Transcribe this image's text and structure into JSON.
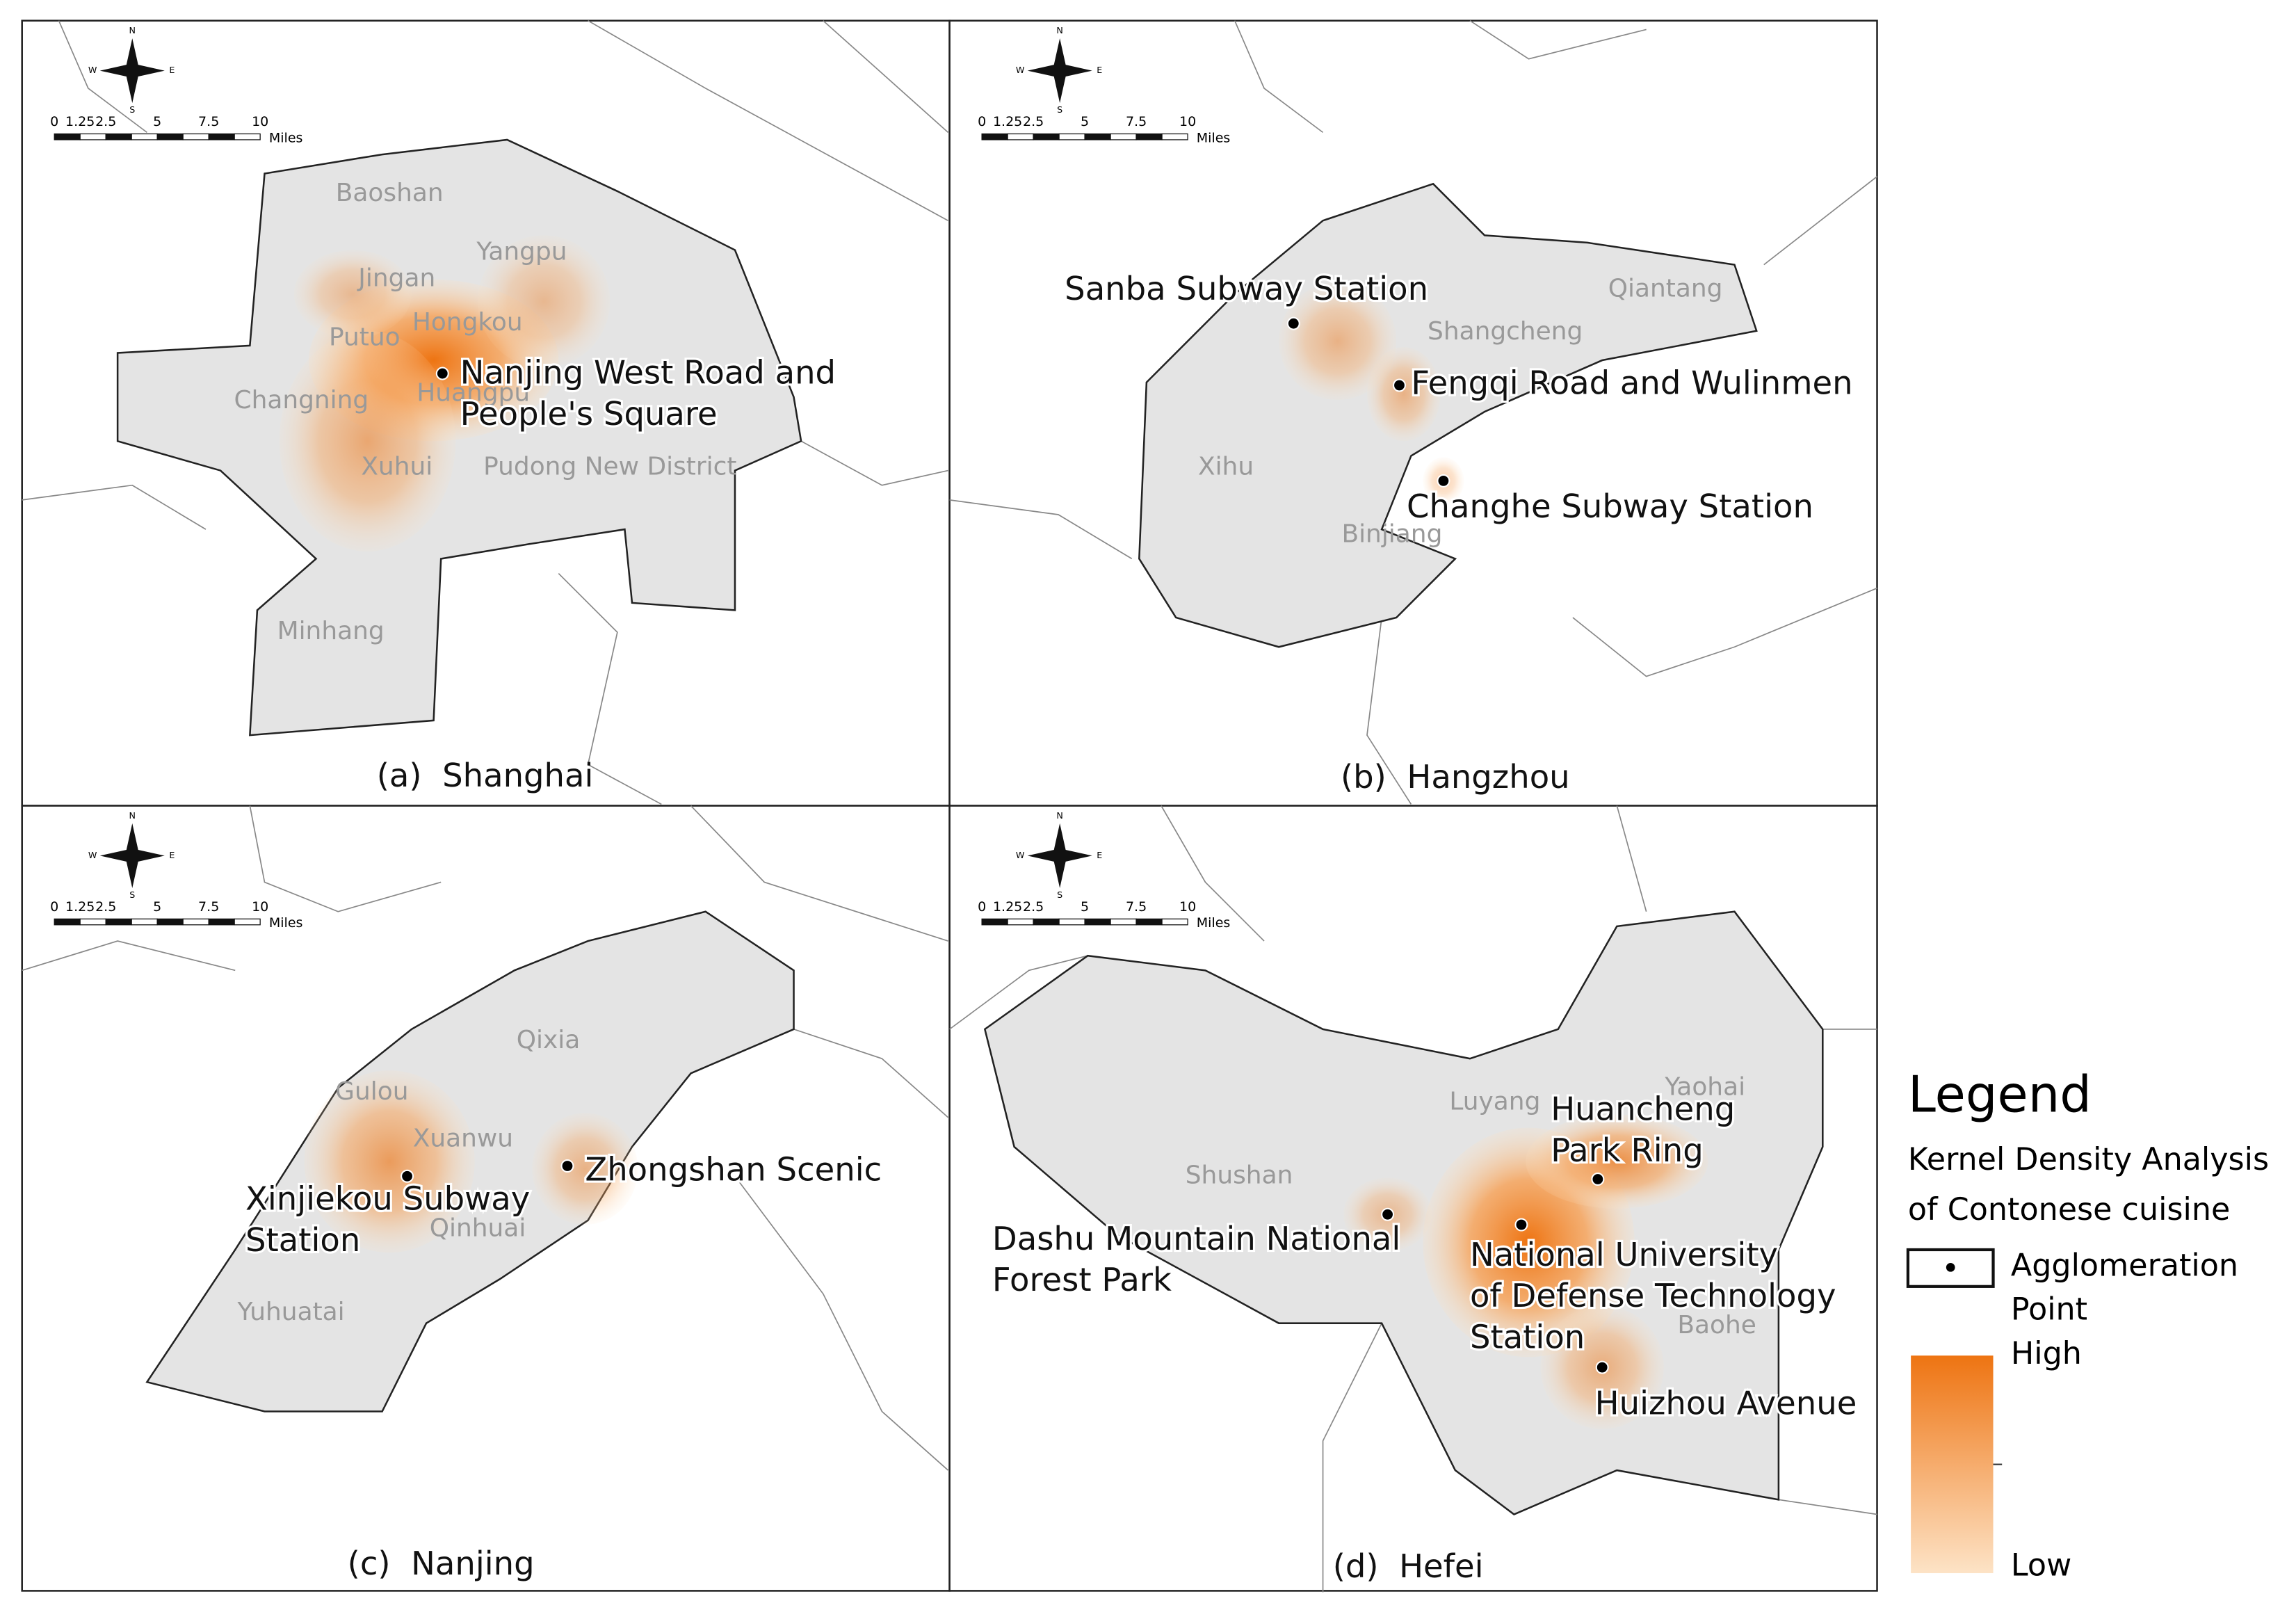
{
  "panels": [
    {
      "caption": "(a)  Shanghai",
      "compass": [
        "N",
        "S",
        "E",
        "W"
      ],
      "scale_labels": [
        "0",
        "1.25",
        "2.5",
        "5",
        "7.5",
        "10"
      ],
      "scale_unit": "Miles",
      "districts": [
        "Baoshan",
        "Yangpu",
        "Jingan",
        "Hongkou",
        "Putuo",
        "Changning",
        "Huangpu",
        "Xuhui",
        "Pudong New District",
        "Minhang"
      ],
      "points": [
        {
          "label": [
            "Nanjing West Road and",
            "People's Square"
          ]
        }
      ]
    },
    {
      "caption": "(b)  Hangzhou",
      "compass": [
        "N",
        "S",
        "E",
        "W"
      ],
      "scale_labels": [
        "0",
        "1.25",
        "2.5",
        "5",
        "7.5",
        "10"
      ],
      "scale_unit": "Miles",
      "districts": [
        "Qiantang",
        "Shangcheng",
        "Xihu",
        "Binjiang"
      ],
      "points": [
        {
          "label": [
            "Sanba Subway Station"
          ]
        },
        {
          "label": [
            "Fengqi Road and Wulinmen"
          ]
        },
        {
          "label": [
            "Changhe Subway Station"
          ]
        }
      ]
    },
    {
      "caption": "(c)  Nanjing",
      "compass": [
        "N",
        "S",
        "E",
        "W"
      ],
      "scale_labels": [
        "0",
        "1.25",
        "2.5",
        "5",
        "7.5",
        "10"
      ],
      "scale_unit": "Miles",
      "districts": [
        "Qixia",
        "Gulou",
        "Xuanwu",
        "Qinhuai",
        "Yuhuatai"
      ],
      "points": [
        {
          "label": [
            "Xinjiekou Subway",
            "Station"
          ]
        },
        {
          "label": [
            "Zhongshan Scenic"
          ]
        }
      ]
    },
    {
      "caption": "(d)  Hefei",
      "compass": [
        "N",
        "S",
        "E",
        "W"
      ],
      "scale_labels": [
        "0",
        "1.25",
        "2.5",
        "5",
        "7.5",
        "10"
      ],
      "scale_unit": "Miles",
      "districts": [
        "Luyang",
        "Yaohai",
        "Shushan",
        "Baohe"
      ],
      "points": [
        {
          "label": [
            "Huancheng",
            "Park Ring"
          ]
        },
        {
          "label": [
            "Dashu Mountain National",
            "Forest Park"
          ]
        },
        {
          "label": [
            "National University",
            "of Defense Technology",
            "Station"
          ]
        },
        {
          "label": [
            "Huizhou Avenue"
          ]
        }
      ]
    }
  ],
  "legend": {
    "title": "Legend",
    "subtitle": [
      "Kernel Density Analysis",
      "of Contonese cuisine"
    ],
    "point": [
      "Agglomeration",
      "Point"
    ],
    "high": "High",
    "low": "Low"
  }
}
